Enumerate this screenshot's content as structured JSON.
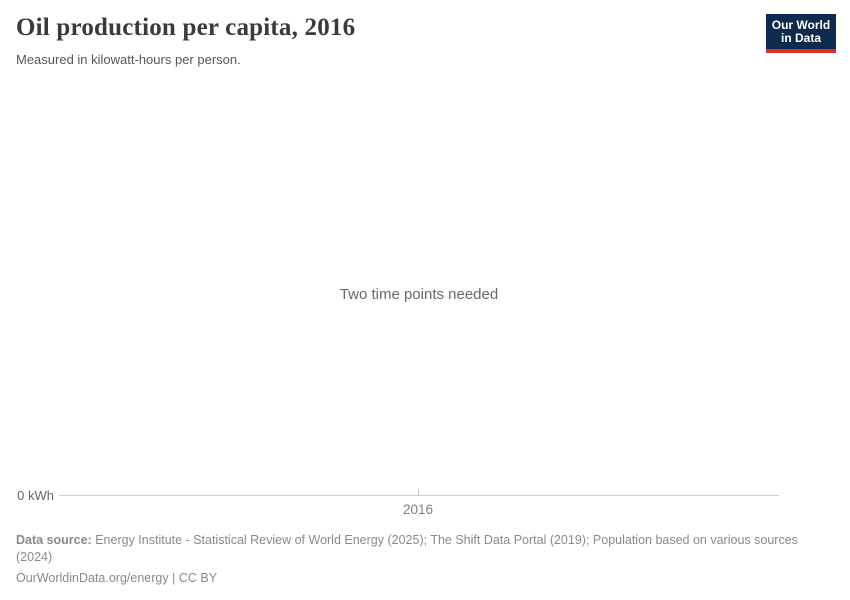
{
  "header": {
    "title": "Oil production per capita, 2016",
    "subtitle": "Measured in kilowatt-hours per person."
  },
  "logo": {
    "line1": "Our World",
    "line2": "in Data",
    "bg_color": "#0e2a4e",
    "bar_color": "#dc2f27",
    "text_color": "#ffffff"
  },
  "plot": {
    "message": "Two time points needed"
  },
  "axis": {
    "y_label": "0 kWh",
    "x_tick_label": "2016"
  },
  "footer": {
    "data_source_label": "Data source:",
    "data_source_text": "Energy Institute - Statistical Review of World Energy (2025); The Shift Data Portal (2019); Population based on various sources (2024)",
    "url": "OurWorldinData.org/energy",
    "separator": "|",
    "license": "CC BY"
  },
  "chart_data": {
    "type": "line",
    "title": "Oil production per capita, 2016",
    "subtitle": "Measured in kilowatt-hours per person.",
    "x_ticks": [
      "2016"
    ],
    "y_ticks": [
      "0 kWh"
    ],
    "x": [
      2016
    ],
    "series": [],
    "annotations": [
      "Two time points needed"
    ],
    "xlabel": "",
    "ylabel": "kilowatt-hours per person",
    "ylim_label": "0 kWh",
    "grid": false,
    "legend": false,
    "note": "Chart shows no data series; placeholder message displayed because two time points are required."
  }
}
